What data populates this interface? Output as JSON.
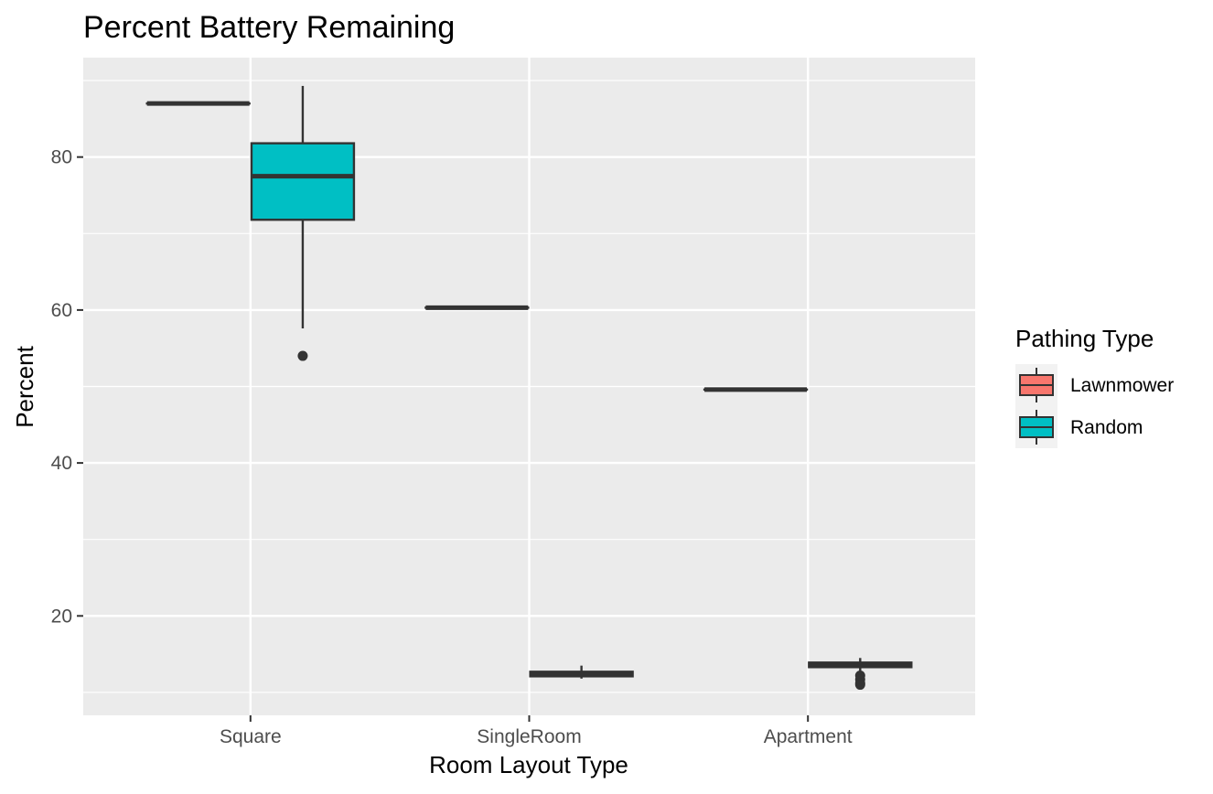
{
  "chart_data": {
    "type": "box",
    "title": "Percent Battery Remaining",
    "xlabel": "Room Layout Type",
    "ylabel": "Percent",
    "categories": [
      "Square",
      "SingleRoom",
      "Apartment"
    ],
    "ylim": [
      7,
      93
    ],
    "yticks": [
      20,
      40,
      60,
      80
    ],
    "grid": true,
    "legend": {
      "title": "Pathing Type",
      "position": "right"
    },
    "series": [
      {
        "name": "Lawnmower",
        "color": "#F8766D",
        "boxes": [
          {
            "category": "Square",
            "min": 87.0,
            "q1": 87.0,
            "median": 87.0,
            "q3": 87.0,
            "max": 87.0,
            "outliers": []
          },
          {
            "category": "SingleRoom",
            "min": 60.3,
            "q1": 60.3,
            "median": 60.3,
            "q3": 60.3,
            "max": 60.3,
            "outliers": []
          },
          {
            "category": "Apartment",
            "min": 49.6,
            "q1": 49.6,
            "median": 49.6,
            "q3": 49.6,
            "max": 49.6,
            "outliers": []
          }
        ]
      },
      {
        "name": "Random",
        "color": "#00BFC4",
        "boxes": [
          {
            "category": "Square",
            "min": 57.6,
            "q1": 71.8,
            "median": 77.5,
            "q3": 81.8,
            "max": 89.3,
            "outliers": [
              54.0
            ]
          },
          {
            "category": "SingleRoom",
            "min": 11.8,
            "q1": 12.1,
            "median": 12.4,
            "q3": 12.7,
            "max": 13.5,
            "outliers": []
          },
          {
            "category": "Apartment",
            "min": 12.8,
            "q1": 13.3,
            "median": 13.6,
            "q3": 13.9,
            "max": 14.5,
            "outliers": [
              12.2,
              11.7,
              11.2,
              11.0
            ]
          }
        ]
      }
    ]
  }
}
